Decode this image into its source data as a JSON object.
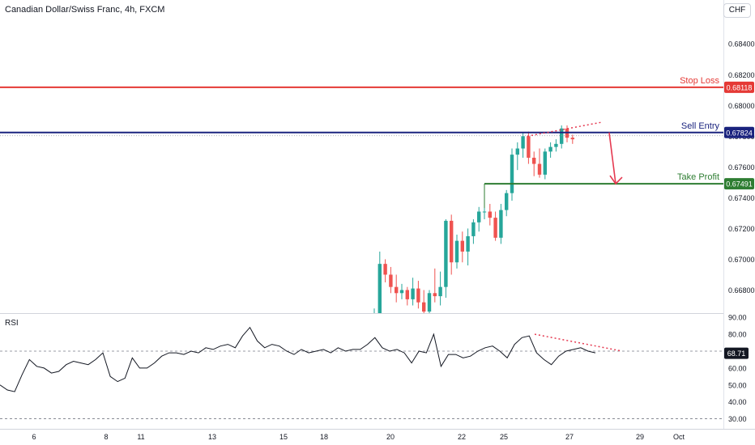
{
  "header": {
    "title": "Canadian Dollar/Swiss Franc, 4h, FXCM",
    "currency": "CHF"
  },
  "colors": {
    "up": "#26a69a",
    "down": "#ef5350",
    "stop_loss": "#e53935",
    "sell_entry": "#1a237e",
    "take_profit": "#2e7d32",
    "rsi_line": "#131722",
    "annotation": "#e53950"
  },
  "chart_data": [
    {
      "type": "candlestick",
      "title": "Canadian Dollar/Swiss Franc, 4h, FXCM",
      "ylim": [
        0.6665,
        0.6858
      ],
      "y_ticks": [
        0.668,
        0.67,
        0.672,
        0.674,
        0.676,
        0.678,
        0.68,
        0.682,
        0.684
      ],
      "y_tick_labels": [
        "0.66800",
        "0.67000",
        "0.67200",
        "0.67400",
        "0.67600",
        "0.67800",
        "0.68000",
        "0.68200",
        "0.68400"
      ],
      "x_tick_labels": [
        "6",
        "8",
        "11",
        "13",
        "15",
        "18",
        "20",
        "22",
        "25",
        "27",
        "29",
        "Oct"
      ],
      "levels": [
        {
          "name": "Stop Loss",
          "value": 0.68118,
          "label": "0.68118",
          "color": "#e53935"
        },
        {
          "name": "Sell Entry",
          "value": 0.67824,
          "label": "0.67824",
          "color": "#1a237e"
        },
        {
          "name": "Take Profit",
          "value": 0.67491,
          "label": "0.67491",
          "color": "#2e7d32"
        }
      ],
      "candles": [
        {
          "o": 0.6655,
          "h": 0.6668,
          "l": 0.665,
          "c": 0.6665
        },
        {
          "o": 0.6665,
          "h": 0.6705,
          "l": 0.666,
          "c": 0.6697
        },
        {
          "o": 0.6697,
          "h": 0.67,
          "l": 0.6685,
          "c": 0.669
        },
        {
          "o": 0.669,
          "h": 0.6695,
          "l": 0.6678,
          "c": 0.6682
        },
        {
          "o": 0.6682,
          "h": 0.669,
          "l": 0.6672,
          "c": 0.6678
        },
        {
          "o": 0.6678,
          "h": 0.6684,
          "l": 0.6674,
          "c": 0.668
        },
        {
          "o": 0.668,
          "h": 0.6682,
          "l": 0.667,
          "c": 0.6674
        },
        {
          "o": 0.6674,
          "h": 0.6688,
          "l": 0.667,
          "c": 0.6681
        },
        {
          "o": 0.6681,
          "h": 0.6686,
          "l": 0.6668,
          "c": 0.6672
        },
        {
          "o": 0.6672,
          "h": 0.668,
          "l": 0.6665,
          "c": 0.6666
        },
        {
          "o": 0.6666,
          "h": 0.668,
          "l": 0.6664,
          "c": 0.6678
        },
        {
          "o": 0.6678,
          "h": 0.6694,
          "l": 0.6672,
          "c": 0.6676
        },
        {
          "o": 0.6676,
          "h": 0.6692,
          "l": 0.667,
          "c": 0.6682
        },
        {
          "o": 0.6682,
          "h": 0.6726,
          "l": 0.6675,
          "c": 0.6725
        },
        {
          "o": 0.6725,
          "h": 0.6729,
          "l": 0.669,
          "c": 0.6698
        },
        {
          "o": 0.6698,
          "h": 0.6716,
          "l": 0.6694,
          "c": 0.6712
        },
        {
          "o": 0.6712,
          "h": 0.6718,
          "l": 0.6698,
          "c": 0.6705
        },
        {
          "o": 0.6705,
          "h": 0.672,
          "l": 0.6696,
          "c": 0.6715
        },
        {
          "o": 0.6715,
          "h": 0.6726,
          "l": 0.671,
          "c": 0.6724
        },
        {
          "o": 0.6724,
          "h": 0.6734,
          "l": 0.6718,
          "c": 0.6731
        },
        {
          "o": 0.6731,
          "h": 0.6749,
          "l": 0.6726,
          "c": 0.6731
        },
        {
          "o": 0.6731,
          "h": 0.6736,
          "l": 0.6722,
          "c": 0.6727
        },
        {
          "o": 0.6727,
          "h": 0.6731,
          "l": 0.6712,
          "c": 0.6714
        },
        {
          "o": 0.6714,
          "h": 0.6736,
          "l": 0.671,
          "c": 0.6732
        },
        {
          "o": 0.6732,
          "h": 0.6745,
          "l": 0.6728,
          "c": 0.6743
        },
        {
          "o": 0.6743,
          "h": 0.6772,
          "l": 0.6738,
          "c": 0.6768
        },
        {
          "o": 0.6768,
          "h": 0.6776,
          "l": 0.6758,
          "c": 0.6772
        },
        {
          "o": 0.6772,
          "h": 0.6782,
          "l": 0.6766,
          "c": 0.678
        },
        {
          "o": 0.678,
          "h": 0.6783,
          "l": 0.6762,
          "c": 0.6766
        },
        {
          "o": 0.6766,
          "h": 0.677,
          "l": 0.6754,
          "c": 0.6762
        },
        {
          "o": 0.6762,
          "h": 0.6772,
          "l": 0.6753,
          "c": 0.6755
        },
        {
          "o": 0.6755,
          "h": 0.6772,
          "l": 0.6752,
          "c": 0.677
        },
        {
          "o": 0.677,
          "h": 0.6776,
          "l": 0.6766,
          "c": 0.6773
        },
        {
          "o": 0.6773,
          "h": 0.6778,
          "l": 0.677,
          "c": 0.6775
        },
        {
          "o": 0.6775,
          "h": 0.6787,
          "l": 0.6772,
          "c": 0.6785
        },
        {
          "o": 0.6785,
          "h": 0.6787,
          "l": 0.6776,
          "c": 0.6779
        },
        {
          "o": 0.6779,
          "h": 0.6781,
          "l": 0.6775,
          "c": 0.6778
        }
      ],
      "annotations": {
        "projection": [
          {
            "from": 0.67824,
            "to": 0.67491
          }
        ],
        "diverge": [
          0.678,
          0.6789
        ]
      }
    },
    {
      "type": "line",
      "title": "RSI",
      "ylim": [
        25,
        92
      ],
      "y_ticks": [
        30,
        40,
        50,
        60,
        70,
        80,
        90
      ],
      "y_tick_labels": [
        "30.00",
        "40.00",
        "50.00",
        "60.00",
        "70.00",
        "80.00",
        "90.00"
      ],
      "current_label": "68.71",
      "current_value": 68.71,
      "values": [
        50,
        47,
        46,
        56,
        65,
        61,
        60,
        57,
        58,
        62,
        64,
        63,
        62,
        65,
        69,
        55,
        52,
        54,
        66,
        60,
        60,
        63,
        67,
        69,
        69,
        68,
        70,
        69,
        72,
        71,
        73,
        74,
        72,
        79,
        84,
        76,
        72,
        74,
        73,
        70,
        68,
        71,
        69,
        70,
        71,
        69,
        72,
        70,
        71,
        71,
        74,
        78,
        72,
        70,
        71,
        69,
        63,
        70,
        69,
        80,
        61,
        68,
        68,
        66,
        67,
        70,
        72,
        73,
        70,
        66,
        74,
        78,
        79,
        69,
        65,
        62,
        67,
        70,
        71,
        72,
        70,
        69
      ]
    }
  ]
}
